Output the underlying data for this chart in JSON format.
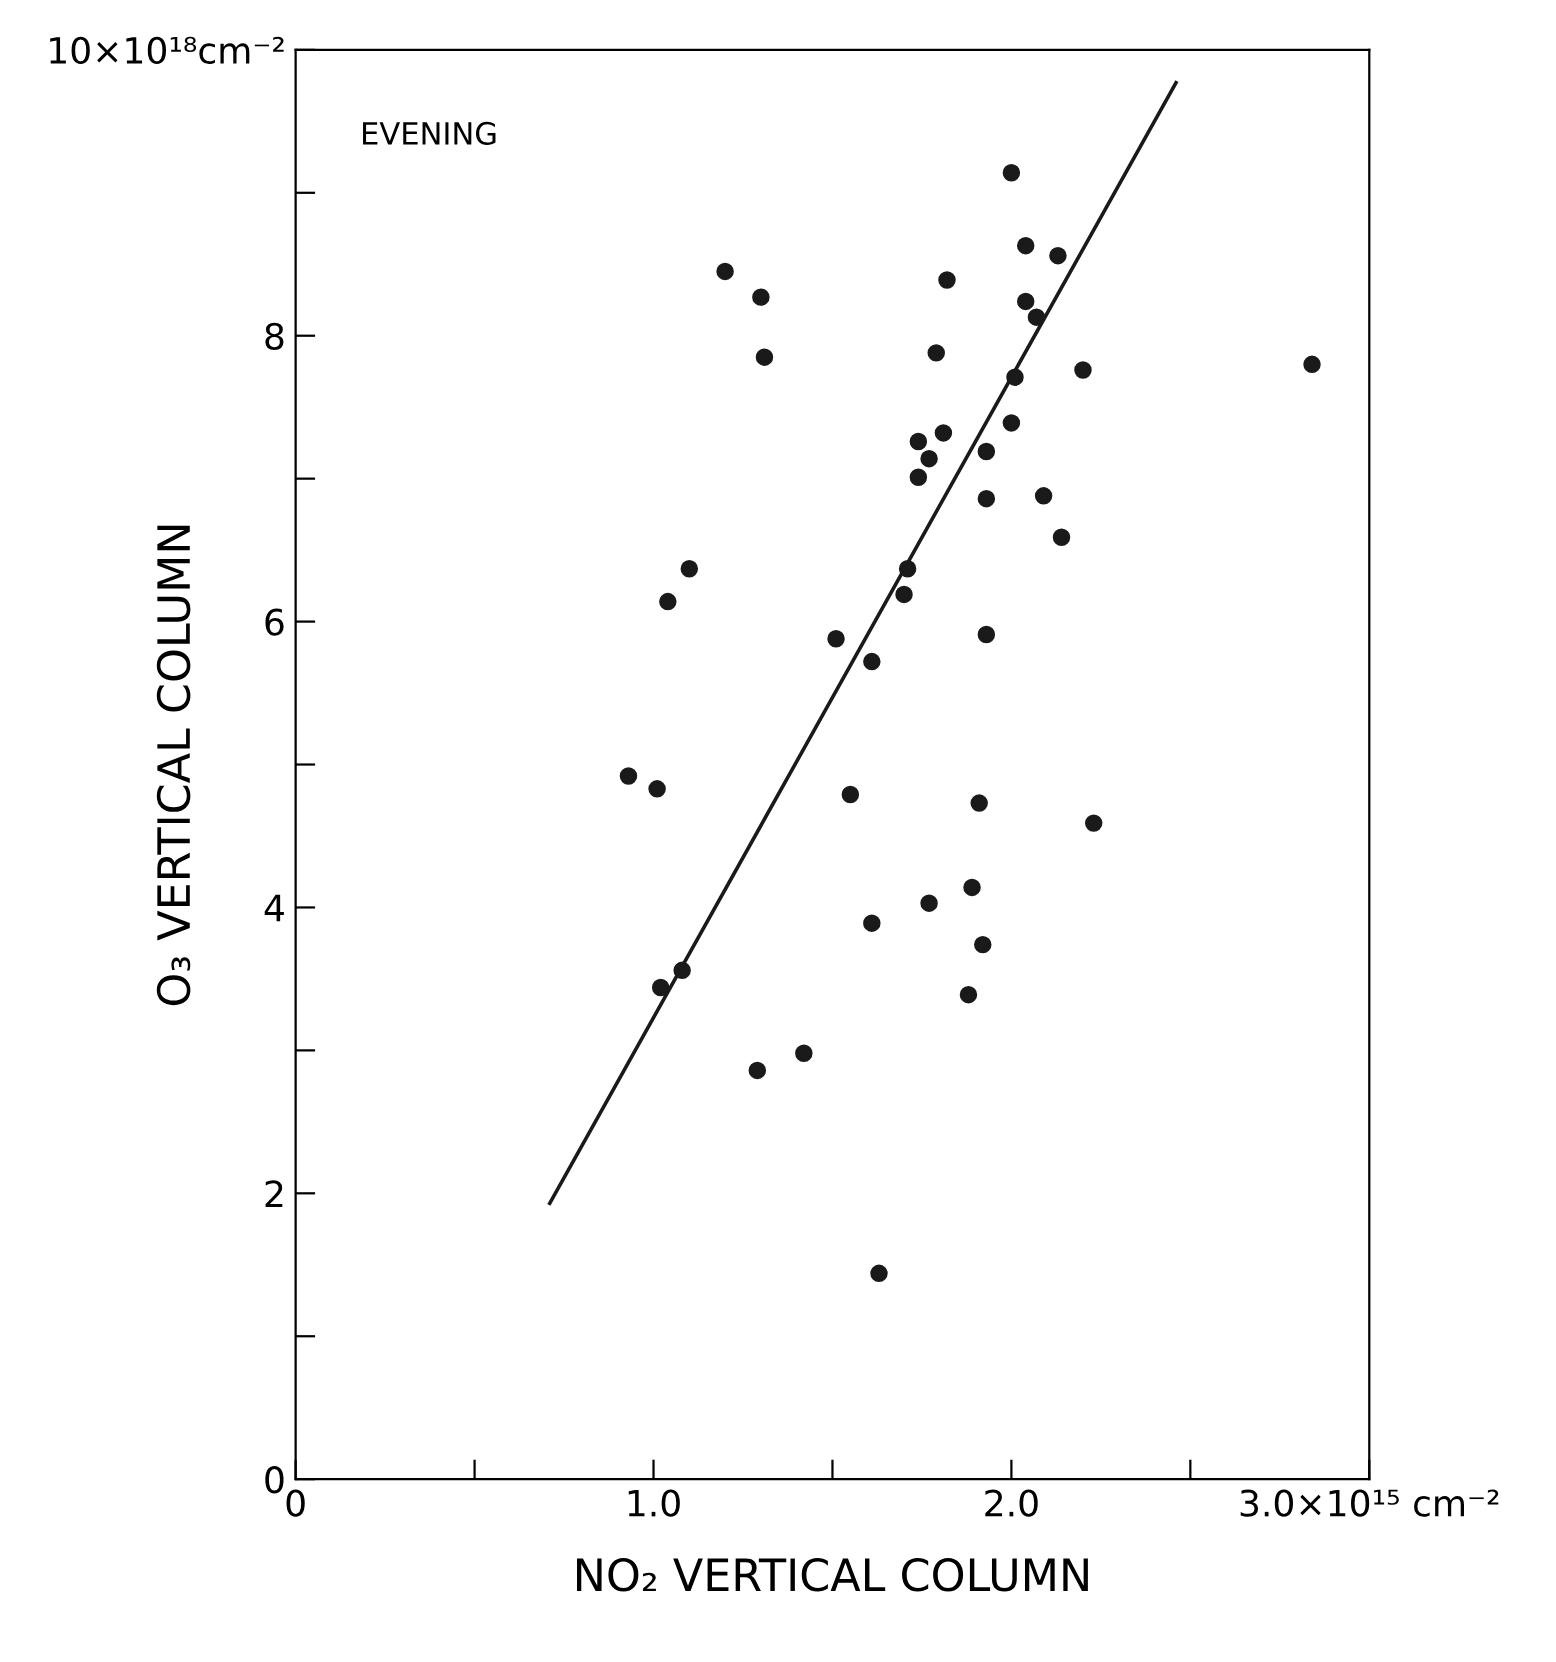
{
  "chart_data": {
    "type": "scatter",
    "xlabel": "NO₂ VERTICAL COLUMN",
    "ylabel": "O₃ VERTICAL COLUMN",
    "annotations": [
      "EVENING"
    ],
    "xlim": [
      0,
      3.0
    ],
    "ylim": [
      0,
      10
    ],
    "xticks": [
      {
        "value": 0,
        "label": "0"
      },
      {
        "value": 0.5,
        "label": null
      },
      {
        "value": 1.0,
        "label": "1.0"
      },
      {
        "value": 1.5,
        "label": null
      },
      {
        "value": 2.0,
        "label": "2.0"
      },
      {
        "value": 2.5,
        "label": null
      },
      {
        "value": 3.0,
        "label": "3.0×10¹⁵ cm⁻²"
      }
    ],
    "yticks": [
      0,
      {
        "value": 1,
        "label": null
      },
      2,
      {
        "value": 3,
        "label": null
      },
      4,
      {
        "value": 5,
        "label": null
      },
      6,
      {
        "value": 7,
        "label": null
      },
      8,
      {
        "value": 9,
        "label": null
      },
      {
        "value": 10,
        "label": "10×10¹⁸cm⁻²"
      }
    ],
    "marker": "circle",
    "grid": false,
    "legend": false,
    "series": [
      {
        "color": "#1a1a1a",
        "x": [
          2.0,
          2.04,
          2.13,
          1.2,
          1.3,
          1.82,
          2.04,
          2.07,
          1.31,
          1.79,
          2.2,
          2.01,
          2.0,
          1.81,
          1.74,
          1.77,
          1.93,
          1.74,
          1.93,
          2.09,
          2.14,
          1.1,
          1.04,
          1.71,
          1.7,
          1.51,
          1.61,
          1.93,
          0.93,
          1.01,
          1.55,
          1.91,
          2.23,
          1.89,
          1.77,
          1.61,
          1.92,
          1.08,
          1.02,
          1.88,
          1.42,
          1.29,
          1.63,
          2.84
        ],
        "values": [
          9.14,
          8.63,
          8.56,
          8.45,
          8.27,
          8.39,
          8.24,
          8.13,
          7.85,
          7.88,
          7.76,
          7.71,
          7.39,
          7.32,
          7.26,
          7.14,
          7.19,
          7.01,
          6.86,
          6.88,
          6.59,
          6.37,
          6.14,
          6.37,
          6.19,
          5.88,
          5.72,
          5.91,
          4.92,
          4.83,
          4.79,
          4.73,
          4.59,
          4.14,
          4.03,
          3.89,
          3.74,
          3.56,
          3.44,
          3.39,
          2.98,
          2.86,
          1.44,
          7.8
        ]
      },
      {
        "type": "line",
        "color": "#1a1a1a",
        "marker": "none",
        "line_style": "solid",
        "x": [
          0.71,
          2.46
        ],
        "values": [
          1.93,
          9.77
        ]
      }
    ]
  }
}
